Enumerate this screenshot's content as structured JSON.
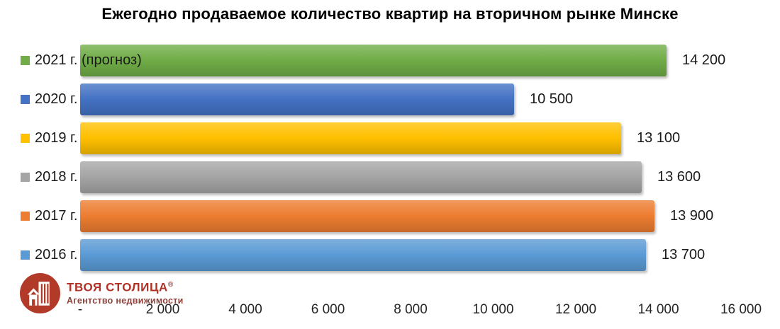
{
  "title": "Ежегодно продаваемое количество квартир на вторичном рынке Минске",
  "chart_data": {
    "type": "bar",
    "orientation": "horizontal",
    "title": "Ежегодно продаваемое количество квартир на вторичном рынке Минске",
    "categories": [
      "2021 г. (прогноз)",
      "2020 г.",
      "2019 г.",
      "2018 г.",
      "2017 г.",
      "2016 г."
    ],
    "values": [
      14200,
      10500,
      13100,
      13600,
      13900,
      13700
    ],
    "value_labels": [
      "14 200",
      "10 500",
      "13 100",
      "13 600",
      "13 900",
      "13 700"
    ],
    "bar_colors": [
      "#70AD47",
      "#4472C4",
      "#FFC000",
      "#A5A5A5",
      "#ED7D31",
      "#5B9BD5"
    ],
    "xlim": [
      0,
      16000
    ],
    "x_tick_values": [
      0,
      2000,
      4000,
      6000,
      8000,
      10000,
      12000,
      14000,
      16000
    ],
    "x_tick_labels": [
      "-",
      "2 000",
      "4 000",
      "6 000",
      "8 000",
      "10 000",
      "12 000",
      "14 000",
      "16 000"
    ],
    "xlabel": "",
    "ylabel": "",
    "grid": false,
    "legend_position": "inline category markers left of each bar"
  },
  "logo": {
    "brand": "ТВОЯ СТОЛИЦА",
    "registered_mark": "®",
    "tagline": "Агентство недвижимости",
    "brand_color": "#B03226"
  }
}
